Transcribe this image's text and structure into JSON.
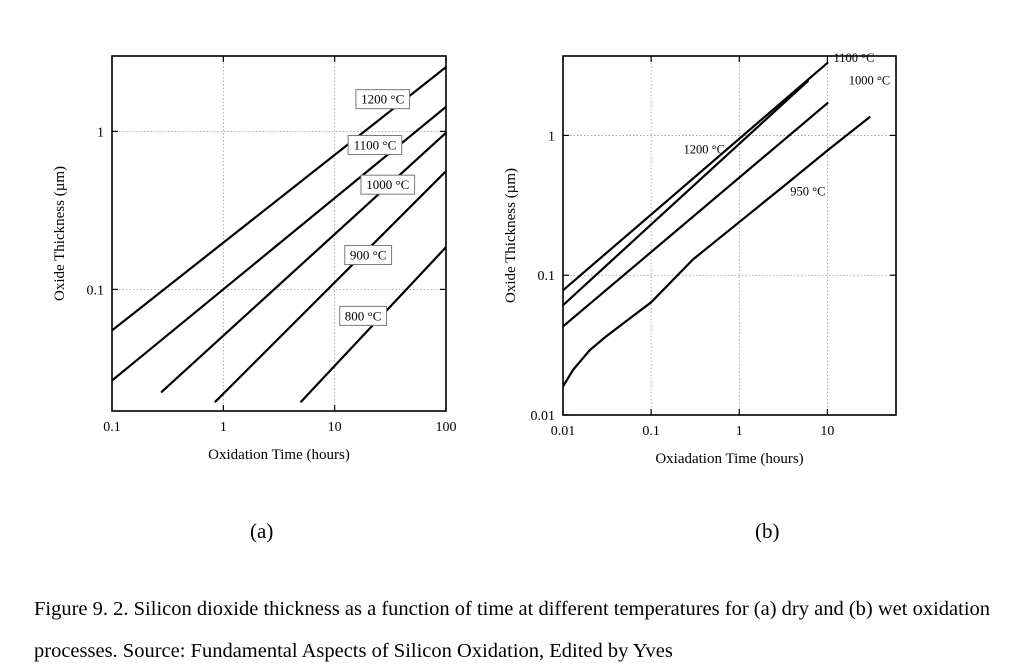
{
  "chart_data": [
    {
      "type": "line",
      "panel": "(a)",
      "xlabel": "Oxidation Time (hours)",
      "ylabel": "Oxide Thickness (µm)",
      "xscale": "log",
      "yscale": "log",
      "xlim": [
        0.1,
        100
      ],
      "ylim": [
        0.017,
        3.0
      ],
      "xticks": [
        {
          "v": 0.1,
          "label": "0.1"
        },
        {
          "v": 1,
          "label": "1"
        },
        {
          "v": 10,
          "label": "10"
        },
        {
          "v": 100,
          "label": "100"
        }
      ],
      "yticks": [
        {
          "v": 0.1,
          "label": "0.1"
        },
        {
          "v": 1,
          "label": "1"
        }
      ],
      "grid": true,
      "series": [
        {
          "name": "1200 °C",
          "x": [
            0.1,
            100
          ],
          "y": [
            0.055,
            2.55
          ]
        },
        {
          "name": "1100 °C",
          "x": [
            0.1,
            100
          ],
          "y": [
            0.0265,
            1.43
          ]
        },
        {
          "name": "1000 °C",
          "x": [
            0.28,
            100
          ],
          "y": [
            0.0225,
            0.98
          ]
        },
        {
          "name": "900 °C",
          "x": [
            0.85,
            100
          ],
          "y": [
            0.0195,
            0.56
          ]
        },
        {
          "name": "800 °C",
          "x": [
            5.0,
            100
          ],
          "y": [
            0.0195,
            0.185
          ]
        }
      ],
      "labels": [
        {
          "text": "1200 °C",
          "x": 27,
          "y": 1.6
        },
        {
          "text": "1100 °C",
          "x": 23,
          "y": 0.82
        },
        {
          "text": "1000 °C",
          "x": 30,
          "y": 0.46
        },
        {
          "text": "900 °C",
          "x": 20,
          "y": 0.165
        },
        {
          "text": "800 °C",
          "x": 18,
          "y": 0.068
        }
      ]
    },
    {
      "type": "line",
      "panel": "(b)",
      "xlabel": "Oxiadation Time (hours)",
      "ylabel": "Oxide Thickness (µm)",
      "xscale": "log",
      "yscale": "log",
      "xlim": [
        0.01,
        60
      ],
      "ylim": [
        0.01,
        3.7
      ],
      "xticks": [
        {
          "v": 0.01,
          "label": "0.01"
        },
        {
          "v": 0.1,
          "label": "0.1"
        },
        {
          "v": 1,
          "label": "1"
        },
        {
          "v": 10,
          "label": "10"
        }
      ],
      "yticks": [
        {
          "v": 0.01,
          "label": "0.01"
        },
        {
          "v": 0.1,
          "label": "0.1"
        },
        {
          "v": 1,
          "label": "1"
        }
      ],
      "grid": true,
      "series": [
        {
          "name": "1100 °C",
          "x": [
            0.01,
            10
          ],
          "y": [
            0.078,
            3.3
          ]
        },
        {
          "name": "1000 °C",
          "x": [
            0.01,
            6
          ],
          "y": [
            0.061,
            2.45
          ]
        },
        {
          "name": "1200 °C",
          "x": [
            0.01,
            10
          ],
          "y": [
            0.043,
            1.7
          ]
        },
        {
          "name": "950 °C",
          "x": [
            0.01,
            0.013,
            0.02,
            0.03,
            0.05,
            0.1,
            0.3,
            1,
            3,
            10,
            30
          ],
          "y": [
            0.016,
            0.021,
            0.029,
            0.036,
            0.046,
            0.064,
            0.13,
            0.24,
            0.42,
            0.78,
            1.35
          ]
        }
      ],
      "labels": [
        {
          "text": "1200 °C",
          "x": 0.4,
          "y": 0.8
        },
        {
          "text": "950 °C",
          "x": 6,
          "y": 0.4
        },
        {
          "text": "1100 °C",
          "x": 20,
          "y": 3.6
        },
        {
          "text": "1000 °C",
          "x": 30,
          "y": 2.5
        }
      ]
    }
  ],
  "sublabels": [
    "(a)",
    "(b)"
  ],
  "caption": "Figure 9. 2. Silicon dioxide thickness as a function of time at different temperatures for (a) dry and (b) wet oxidation processes. Source: Fundamental Aspects of Silicon Oxidation, Edited by Yves"
}
